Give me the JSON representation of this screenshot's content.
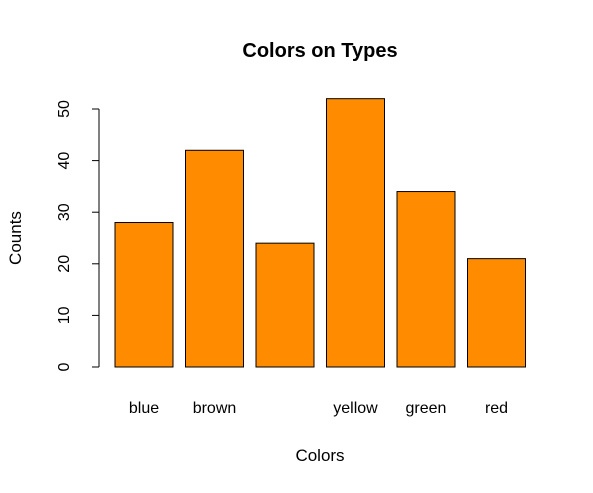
{
  "chart_data": {
    "type": "bar",
    "title": "Colors on Types",
    "xlabel": "Colors",
    "ylabel": "Counts",
    "categories": [
      "blue",
      "brown",
      "",
      "yellow",
      "green",
      "red"
    ],
    "values": [
      28,
      42,
      24,
      52,
      34,
      21
    ],
    "ylim": [
      0,
      50
    ],
    "yticks": [
      0,
      10,
      20,
      30,
      40,
      50
    ],
    "bar_color": "#FF8C00",
    "bar_border_color": "#000000",
    "grid": false
  }
}
